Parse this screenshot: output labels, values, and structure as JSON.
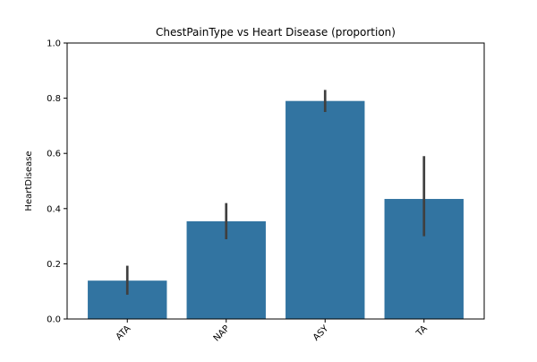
{
  "chart_data": {
    "type": "bar",
    "title": "ChestPainType vs Heart Disease (proportion)",
    "xlabel": "",
    "ylabel": "HeartDisease",
    "categories": [
      "ATA",
      "NAP",
      "ASY",
      "TA"
    ],
    "values": [
      0.139,
      0.354,
      0.79,
      0.435
    ],
    "error_bars": [
      [
        0.088,
        0.193
      ],
      [
        0.289,
        0.42
      ],
      [
        0.75,
        0.83
      ],
      [
        0.3,
        0.59
      ]
    ],
    "ylim": [
      0,
      1.0
    ],
    "yticks": [
      0.0,
      0.2,
      0.4,
      0.6,
      0.8,
      1.0
    ],
    "ytick_labels": [
      "0.0",
      "0.2",
      "0.4",
      "0.6",
      "0.8",
      "1.0"
    ],
    "xtick_rotation_deg": 45,
    "grid": false,
    "bar_color": "#3274a1",
    "error_color": "#3f3f3f"
  }
}
